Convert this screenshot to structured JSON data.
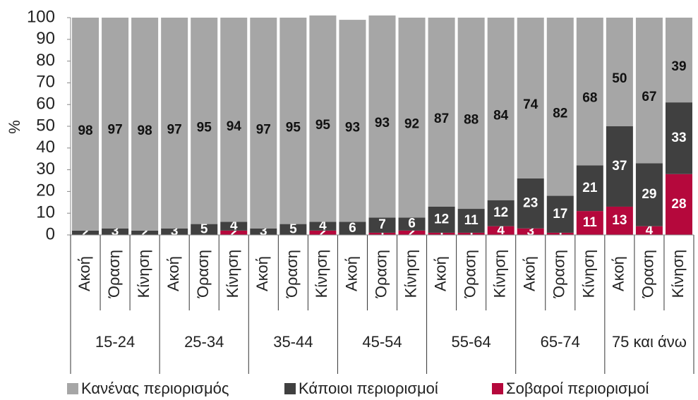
{
  "chart_data": {
    "type": "stacked-bar",
    "y_label": "%",
    "categories": [
      "Ακοή",
      "Όραση",
      "Κίνηση",
      "Ακοή",
      "Όραση",
      "Κίνηση",
      "Ακοή",
      "Όραση",
      "Κίνηση",
      "Ακοή",
      "Όραση",
      "Κίνηση",
      "Ακοή",
      "Όραση",
      "Κίνηση",
      "Ακοή",
      "Όραση",
      "Κίνηση",
      "Ακοή",
      "Όραση",
      "Κίνηση"
    ],
    "groups": [
      "15-24",
      "25-34",
      "35-44",
      "45-54",
      "55-64",
      "65-74",
      "75 και άνω"
    ],
    "series": [
      {
        "name": "Σοβαροί περιορισμοί",
        "color": "#b5083c",
        "values": [
          0,
          0,
          0,
          0,
          0,
          2,
          0,
          0,
          2,
          0,
          1,
          2,
          1,
          1,
          4,
          3,
          1,
          11,
          13,
          4,
          28
        ]
      },
      {
        "name": "Κάποιοι περιορισμοί",
        "color": "#404040",
        "values": [
          2,
          3,
          2,
          3,
          5,
          4,
          3,
          5,
          4,
          6,
          7,
          6,
          12,
          11,
          12,
          23,
          17,
          21,
          37,
          29,
          33
        ]
      },
      {
        "name": "Κανένας περιορισμός",
        "color": "#a6a6a6",
        "values": [
          98,
          97,
          98,
          97,
          95,
          94,
          97,
          95,
          95,
          93,
          93,
          92,
          87,
          88,
          84,
          74,
          82,
          68,
          50,
          67,
          39
        ]
      }
    ],
    "legend_order": [
      2,
      1,
      0
    ],
    "ylim": [
      0,
      100
    ],
    "yticks": [
      0,
      10,
      20,
      30,
      40,
      50,
      60,
      70,
      80,
      90,
      100
    ],
    "grid": false
  }
}
